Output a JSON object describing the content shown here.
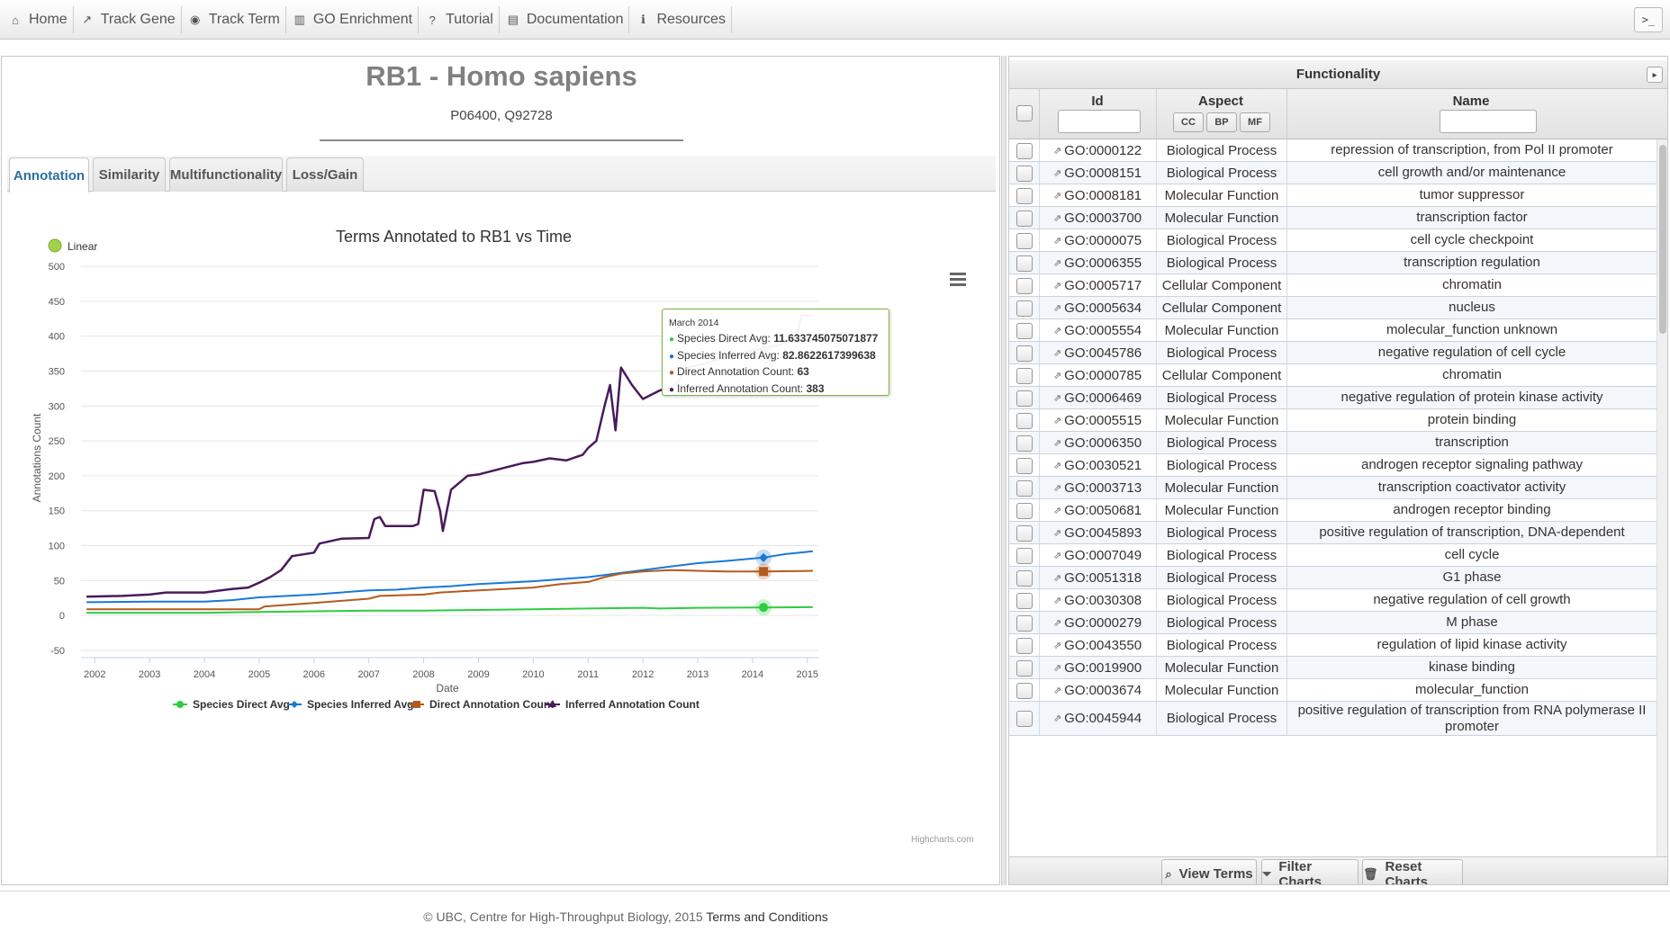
{
  "nav": {
    "items": [
      {
        "label": "Home",
        "icon": "home-icon",
        "glyph": "⌂"
      },
      {
        "label": "Track Gene",
        "icon": "line-chart-icon",
        "glyph": "↗"
      },
      {
        "label": "Track Term",
        "icon": "globe-icon",
        "glyph": "◉"
      },
      {
        "label": "GO Enrichment",
        "icon": "bar-chart-icon",
        "glyph": "▥"
      },
      {
        "label": "Tutorial",
        "icon": "question-icon",
        "glyph": "?"
      },
      {
        "label": "Documentation",
        "icon": "book-icon",
        "glyph": "▤"
      },
      {
        "label": "Resources",
        "icon": "info-icon",
        "glyph": "ℹ"
      }
    ],
    "console_label": ">_"
  },
  "gene": {
    "title": "RB1 - Homo sapiens",
    "accessions": "P06400, Q92728"
  },
  "tabs": [
    "Annotation",
    "Similarity",
    "Multifunctionality",
    "Loss/Gain"
  ],
  "active_tab": "Annotation",
  "chart_data": {
    "type": "line",
    "title": "Terms Annotated to RB1 vs Time",
    "xlabel": "Date",
    "ylabel": "Annotations Count",
    "scale_toggle": "Linear",
    "xlim": [
      2001.75,
      2015.2
    ],
    "ylim": [
      -50,
      500
    ],
    "yticks": [
      -50,
      0,
      50,
      100,
      150,
      200,
      250,
      300,
      350,
      400,
      450,
      500
    ],
    "xticks": [
      "2002",
      "2003",
      "2004",
      "2005",
      "2006",
      "2007",
      "2008",
      "2009",
      "2010",
      "2011",
      "2012",
      "2013",
      "2014",
      "2015"
    ],
    "legend_position": "bottom",
    "credits": "Highcharts.com",
    "series": [
      {
        "name": "Species Direct Avg",
        "color": "#2ecc40",
        "marker": "circle",
        "x": [
          2001.85,
          2004.0,
          2005.0,
          2006.0,
          2007.0,
          2008.0,
          2009.0,
          2010.0,
          2011.0,
          2012.0,
          2012.3,
          2013.0,
          2014.2,
          2015.1
        ],
        "y": [
          4,
          4,
          5,
          6,
          7,
          7,
          8,
          9,
          10,
          11,
          10,
          11,
          11.6,
          12
        ]
      },
      {
        "name": "Species Inferred Avg",
        "color": "#1a78d6",
        "marker": "diamond",
        "x": [
          2001.85,
          2003.0,
          2004.0,
          2004.5,
          2005.0,
          2006.0,
          2007.0,
          2007.5,
          2008.0,
          2008.5,
          2009.0,
          2010.0,
          2011.0,
          2011.5,
          2012.0,
          2012.5,
          2013.0,
          2013.5,
          2014.2,
          2014.6,
          2015.1
        ],
        "y": [
          19,
          20,
          20,
          22,
          26,
          30,
          36,
          37,
          40,
          42,
          45,
          49,
          55,
          60,
          65,
          70,
          75,
          78,
          82.9,
          88,
          92
        ]
      },
      {
        "name": "Direct Annotation Count",
        "color": "#b35a1f",
        "marker": "square",
        "x": [
          2001.85,
          2004.0,
          2005.0,
          2005.1,
          2006.0,
          2007.0,
          2007.2,
          2008.0,
          2008.3,
          2009.0,
          2010.0,
          2010.5,
          2011.0,
          2011.3,
          2011.6,
          2012.0,
          2012.5,
          2013.0,
          2013.5,
          2014.2,
          2015.1
        ],
        "y": [
          9,
          9,
          9,
          13,
          18,
          24,
          28,
          30,
          33,
          36,
          40,
          45,
          48,
          55,
          60,
          63,
          65,
          64,
          63,
          63,
          64
        ]
      },
      {
        "name": "Inferred Annotation Count",
        "color": "#4a1a5c",
        "marker": "triangle",
        "x": [
          2001.85,
          2002.5,
          2003.0,
          2003.3,
          2004.0,
          2004.3,
          2004.5,
          2004.8,
          2005.0,
          2005.2,
          2005.4,
          2005.6,
          2006.0,
          2006.1,
          2006.5,
          2007.0,
          2007.1,
          2007.2,
          2007.3,
          2007.6,
          2007.8,
          2007.9,
          2008.0,
          2008.2,
          2008.3,
          2008.35,
          2008.5,
          2008.8,
          2009.0,
          2009.5,
          2009.8,
          2010.0,
          2010.3,
          2010.6,
          2010.9,
          2011.0,
          2011.15,
          2011.3,
          2011.4,
          2011.5,
          2011.6,
          2011.8,
          2012.0,
          2012.3,
          2012.6,
          2012.8,
          2013.1,
          2013.5,
          2014.2,
          2014.5,
          2014.8,
          2014.9,
          2015.1
        ],
        "y": [
          27,
          28,
          30,
          33,
          33,
          36,
          38,
          40,
          47,
          55,
          65,
          85,
          90,
          103,
          110,
          111,
          138,
          141,
          128,
          128,
          128,
          131,
          180,
          178,
          150,
          121,
          180,
          200,
          202,
          212,
          218,
          220,
          225,
          222,
          230,
          240,
          250,
          300,
          330,
          265,
          355,
          330,
          310,
          322,
          330,
          355,
          360,
          370,
          383,
          388,
          400,
          430,
          429
        ]
      }
    ],
    "hover": {
      "date": "March 2014",
      "x": 2014.2,
      "lines": [
        {
          "label": "Species Direct Avg: ",
          "value": "11.633745075071877",
          "color": "#2ecc40"
        },
        {
          "label": "Species Inferred Avg: ",
          "value": "82.8622617399638",
          "color": "#1a78d6"
        },
        {
          "label": "Direct Annotation Count: ",
          "value": "63",
          "color": "#b35a1f"
        },
        {
          "label": "Inferred Annotation Count: ",
          "value": "383",
          "color": "#4a1a5c"
        }
      ]
    }
  },
  "panel": {
    "title": "Functionality",
    "collapse_label": "▸",
    "columns": {
      "id": "Id",
      "aspect": "Aspect",
      "name": "Name"
    },
    "aspect_filters": [
      "CC",
      "BP",
      "MF"
    ],
    "rows": [
      {
        "id": "GO:0000122",
        "aspect": "Biological Process",
        "name": "repression of transcription, from Pol II promoter"
      },
      {
        "id": "GO:0008151",
        "aspect": "Biological Process",
        "name": "cell growth and/or maintenance"
      },
      {
        "id": "GO:0008181",
        "aspect": "Molecular Function",
        "name": "tumor suppressor"
      },
      {
        "id": "GO:0003700",
        "aspect": "Molecular Function",
        "name": "transcription factor"
      },
      {
        "id": "GO:0000075",
        "aspect": "Biological Process",
        "name": "cell cycle checkpoint"
      },
      {
        "id": "GO:0006355",
        "aspect": "Biological Process",
        "name": "transcription regulation"
      },
      {
        "id": "GO:0005717",
        "aspect": "Cellular Component",
        "name": "chromatin"
      },
      {
        "id": "GO:0005634",
        "aspect": "Cellular Component",
        "name": "nucleus"
      },
      {
        "id": "GO:0005554",
        "aspect": "Molecular Function",
        "name": "molecular_function unknown"
      },
      {
        "id": "GO:0045786",
        "aspect": "Biological Process",
        "name": "negative regulation of cell cycle"
      },
      {
        "id": "GO:0000785",
        "aspect": "Cellular Component",
        "name": "chromatin"
      },
      {
        "id": "GO:0006469",
        "aspect": "Biological Process",
        "name": "negative regulation of protein kinase activity"
      },
      {
        "id": "GO:0005515",
        "aspect": "Molecular Function",
        "name": "protein binding"
      },
      {
        "id": "GO:0006350",
        "aspect": "Biological Process",
        "name": "transcription"
      },
      {
        "id": "GO:0030521",
        "aspect": "Biological Process",
        "name": "androgen receptor signaling pathway"
      },
      {
        "id": "GO:0003713",
        "aspect": "Molecular Function",
        "name": "transcription coactivator activity"
      },
      {
        "id": "GO:0050681",
        "aspect": "Molecular Function",
        "name": "androgen receptor binding"
      },
      {
        "id": "GO:0045893",
        "aspect": "Biological Process",
        "name": "positive regulation of transcription, DNA-dependent"
      },
      {
        "id": "GO:0007049",
        "aspect": "Biological Process",
        "name": "cell cycle"
      },
      {
        "id": "GO:0051318",
        "aspect": "Biological Process",
        "name": "G1 phase"
      },
      {
        "id": "GO:0030308",
        "aspect": "Biological Process",
        "name": "negative regulation of cell growth"
      },
      {
        "id": "GO:0000279",
        "aspect": "Biological Process",
        "name": "M phase"
      },
      {
        "id": "GO:0043550",
        "aspect": "Biological Process",
        "name": "regulation of lipid kinase activity"
      },
      {
        "id": "GO:0019900",
        "aspect": "Molecular Function",
        "name": "kinase binding"
      },
      {
        "id": "GO:0003674",
        "aspect": "Molecular Function",
        "name": "molecular_function"
      },
      {
        "id": "GO:0045944",
        "aspect": "Biological Process",
        "name": "positive regulation of transcription from RNA polymerase II promoter"
      }
    ],
    "buttons": [
      {
        "label": "View Terms",
        "icon": "search-icon",
        "glyph": "⌕"
      },
      {
        "label": "Filter Charts",
        "icon": "filter-icon",
        "glyph": "⏷"
      },
      {
        "label": "Reset Charts",
        "icon": "trash-icon",
        "glyph": "🗑"
      }
    ]
  },
  "footer": {
    "copyright": "© UBC, Centre for High-Throughput Biology, 2015 ",
    "link": "Terms and Conditions"
  }
}
